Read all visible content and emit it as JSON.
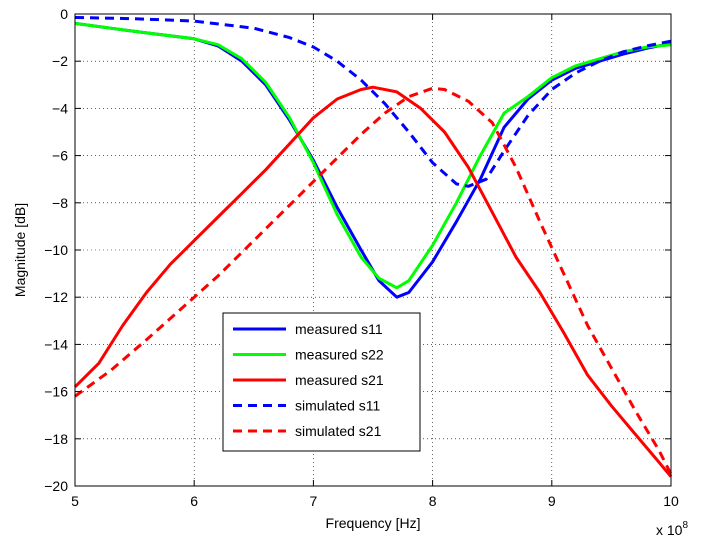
{
  "chart_data": {
    "type": "line",
    "xlabel": "Frequency [Hz]",
    "ylabel": "Magnitude [dB]",
    "exponent_label": "x 10",
    "exponent_power": "8",
    "xlim": [
      5,
      10
    ],
    "ylim": [
      -20,
      0
    ],
    "x_ticks": [
      5,
      6,
      7,
      8,
      9,
      10
    ],
    "y_ticks": [
      0,
      -2,
      -4,
      -6,
      -8,
      -10,
      -12,
      -14,
      -16,
      -18,
      -20
    ],
    "x_tick_labels": [
      "5",
      "6",
      "7",
      "8",
      "9",
      "10"
    ],
    "y_tick_labels": [
      "0",
      "−2",
      "−4",
      "−6",
      "−8",
      "−10",
      "−12",
      "−14",
      "−16",
      "−18",
      "−20"
    ],
    "grid": true,
    "legend_position": "lower-center",
    "series": [
      {
        "name": "measured s11",
        "color": "#0000ff",
        "dash": false,
        "points": [
          [
            5.0,
            -0.4
          ],
          [
            5.3,
            -0.6
          ],
          [
            5.6,
            -0.8
          ],
          [
            6.0,
            -1.05
          ],
          [
            6.2,
            -1.35
          ],
          [
            6.4,
            -2.0
          ],
          [
            6.6,
            -3.0
          ],
          [
            6.8,
            -4.5
          ],
          [
            7.0,
            -6.2
          ],
          [
            7.2,
            -8.2
          ],
          [
            7.4,
            -10.0
          ],
          [
            7.55,
            -11.3
          ],
          [
            7.7,
            -12.0
          ],
          [
            7.8,
            -11.8
          ],
          [
            8.0,
            -10.5
          ],
          [
            8.2,
            -8.8
          ],
          [
            8.4,
            -7.0
          ],
          [
            8.6,
            -4.8
          ],
          [
            8.8,
            -3.6
          ],
          [
            9.0,
            -2.8
          ],
          [
            9.2,
            -2.3
          ],
          [
            9.4,
            -2.0
          ],
          [
            9.6,
            -1.7
          ],
          [
            9.8,
            -1.45
          ],
          [
            10.0,
            -1.25
          ]
        ]
      },
      {
        "name": "measured s22",
        "color": "#00ff00",
        "dash": false,
        "points": [
          [
            5.0,
            -0.4
          ],
          [
            5.3,
            -0.6
          ],
          [
            5.6,
            -0.8
          ],
          [
            6.0,
            -1.05
          ],
          [
            6.2,
            -1.3
          ],
          [
            6.4,
            -1.9
          ],
          [
            6.6,
            -2.9
          ],
          [
            6.8,
            -4.4
          ],
          [
            7.0,
            -6.3
          ],
          [
            7.2,
            -8.5
          ],
          [
            7.4,
            -10.3
          ],
          [
            7.55,
            -11.2
          ],
          [
            7.7,
            -11.6
          ],
          [
            7.8,
            -11.3
          ],
          [
            8.0,
            -9.8
          ],
          [
            8.2,
            -8.0
          ],
          [
            8.4,
            -6.0
          ],
          [
            8.6,
            -4.2
          ],
          [
            8.8,
            -3.5
          ],
          [
            9.0,
            -2.7
          ],
          [
            9.2,
            -2.2
          ],
          [
            9.4,
            -1.9
          ],
          [
            9.6,
            -1.6
          ],
          [
            9.8,
            -1.4
          ],
          [
            10.0,
            -1.3
          ]
        ]
      },
      {
        "name": "measured s21",
        "color": "#ff0000",
        "dash": false,
        "points": [
          [
            5.0,
            -15.8
          ],
          [
            5.2,
            -14.8
          ],
          [
            5.4,
            -13.2
          ],
          [
            5.6,
            -11.8
          ],
          [
            5.8,
            -10.6
          ],
          [
            6.0,
            -9.6
          ],
          [
            6.2,
            -8.6
          ],
          [
            6.4,
            -7.6
          ],
          [
            6.6,
            -6.6
          ],
          [
            6.8,
            -5.5
          ],
          [
            7.0,
            -4.4
          ],
          [
            7.2,
            -3.6
          ],
          [
            7.4,
            -3.2
          ],
          [
            7.5,
            -3.1
          ],
          [
            7.7,
            -3.3
          ],
          [
            7.9,
            -4.0
          ],
          [
            8.1,
            -5.0
          ],
          [
            8.3,
            -6.5
          ],
          [
            8.5,
            -8.4
          ],
          [
            8.7,
            -10.3
          ],
          [
            8.9,
            -11.8
          ],
          [
            9.1,
            -13.5
          ],
          [
            9.3,
            -15.3
          ],
          [
            9.5,
            -16.6
          ],
          [
            9.7,
            -17.8
          ],
          [
            9.9,
            -19.0
          ],
          [
            10.0,
            -19.6
          ]
        ]
      },
      {
        "name": "simulated s11",
        "color": "#0000ff",
        "dash": true,
        "points": [
          [
            5.0,
            -0.15
          ],
          [
            5.5,
            -0.2
          ],
          [
            6.0,
            -0.3
          ],
          [
            6.5,
            -0.6
          ],
          [
            6.8,
            -1.0
          ],
          [
            7.0,
            -1.4
          ],
          [
            7.2,
            -2.0
          ],
          [
            7.4,
            -2.8
          ],
          [
            7.6,
            -3.8
          ],
          [
            7.8,
            -5.0
          ],
          [
            8.0,
            -6.3
          ],
          [
            8.2,
            -7.2
          ],
          [
            8.3,
            -7.3
          ],
          [
            8.45,
            -7.0
          ],
          [
            8.6,
            -5.8
          ],
          [
            8.8,
            -4.3
          ],
          [
            9.0,
            -3.2
          ],
          [
            9.2,
            -2.5
          ],
          [
            9.4,
            -2.0
          ],
          [
            9.6,
            -1.6
          ],
          [
            9.8,
            -1.35
          ],
          [
            10.0,
            -1.15
          ]
        ]
      },
      {
        "name": "simulated s21",
        "color": "#ff0000",
        "dash": true,
        "points": [
          [
            5.0,
            -16.2
          ],
          [
            5.3,
            -15.1
          ],
          [
            5.6,
            -13.8
          ],
          [
            5.8,
            -12.9
          ],
          [
            6.0,
            -12.0
          ],
          [
            6.2,
            -11.1
          ],
          [
            6.4,
            -10.1
          ],
          [
            6.6,
            -9.1
          ],
          [
            6.8,
            -8.1
          ],
          [
            7.0,
            -7.1
          ],
          [
            7.2,
            -6.1
          ],
          [
            7.4,
            -5.1
          ],
          [
            7.6,
            -4.2
          ],
          [
            7.8,
            -3.5
          ],
          [
            8.0,
            -3.15
          ],
          [
            8.1,
            -3.2
          ],
          [
            8.3,
            -3.7
          ],
          [
            8.5,
            -4.6
          ],
          [
            8.7,
            -6.5
          ],
          [
            8.9,
            -8.8
          ],
          [
            9.1,
            -11.0
          ],
          [
            9.3,
            -13.2
          ],
          [
            9.5,
            -15.0
          ],
          [
            9.7,
            -16.8
          ],
          [
            9.9,
            -18.5
          ],
          [
            10.0,
            -19.5
          ]
        ]
      }
    ]
  }
}
